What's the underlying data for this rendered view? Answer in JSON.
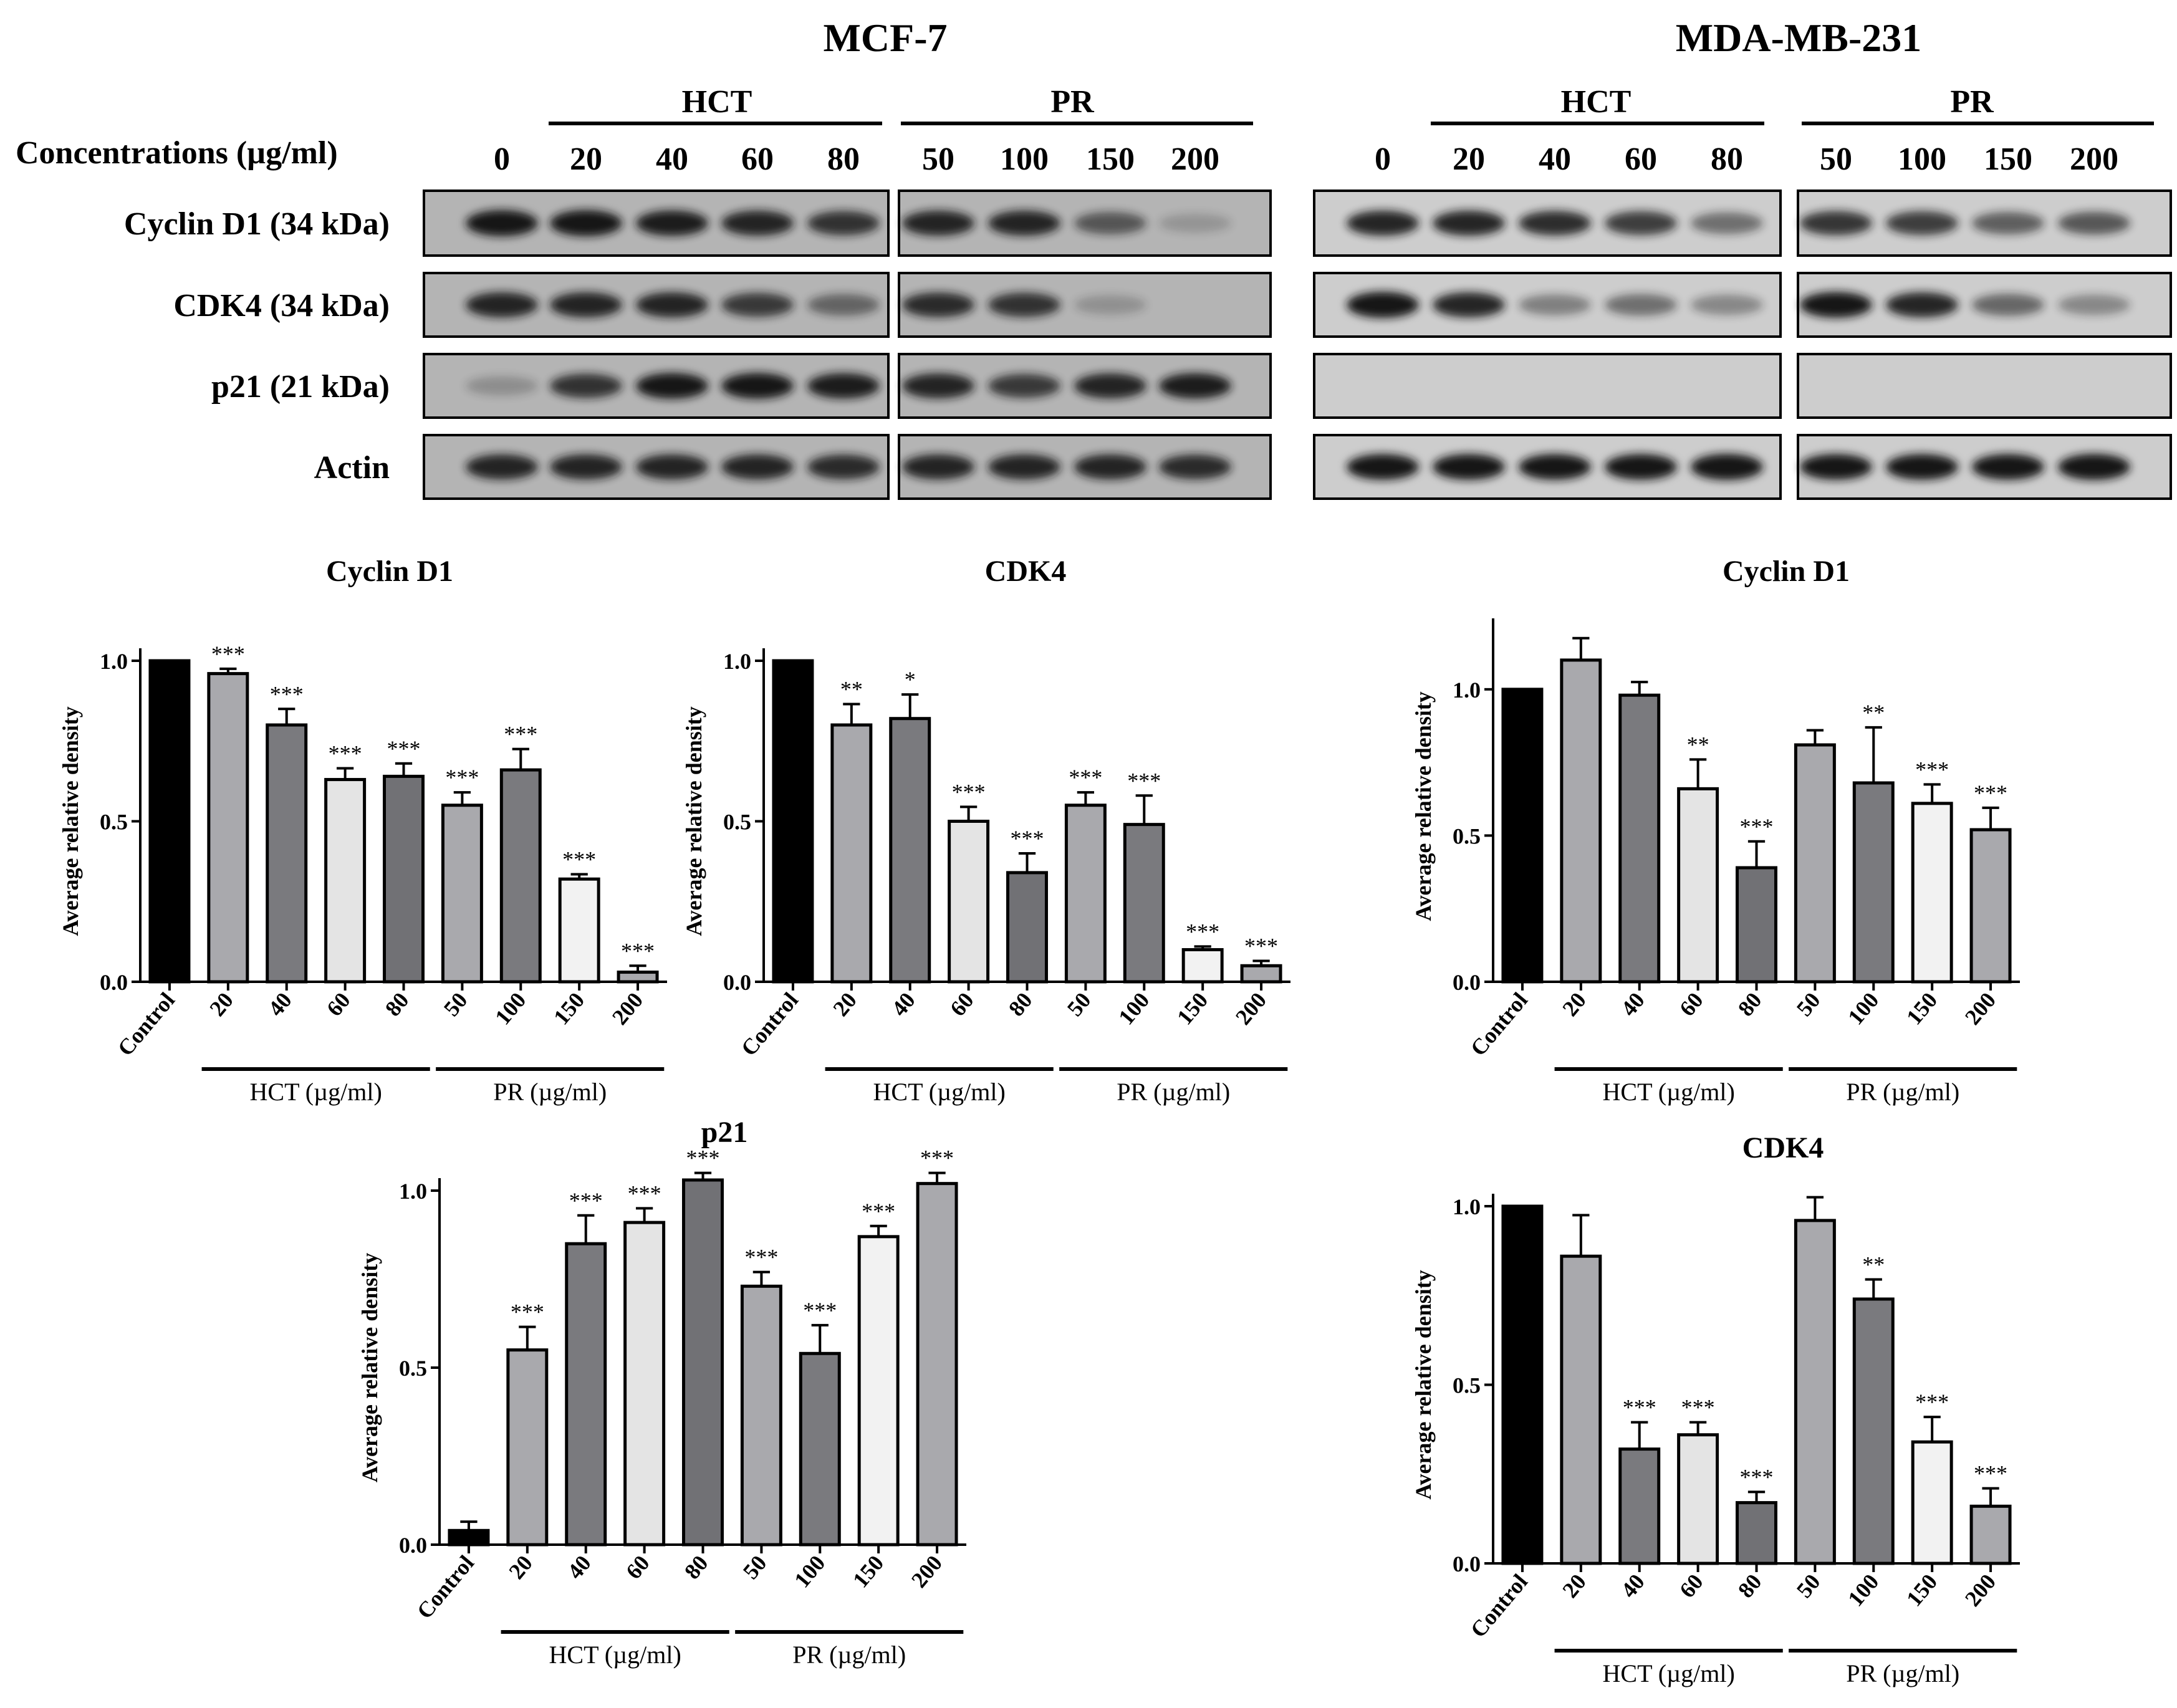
{
  "blot": {
    "cell_lines": [
      "MCF-7",
      "MDA-MB-231"
    ],
    "concentration_label": "Concentrations (µg/ml)",
    "groups": [
      "HCT",
      "PR"
    ],
    "hct_lanes": [
      "0",
      "20",
      "40",
      "60",
      "80"
    ],
    "pr_lanes": [
      "50",
      "100",
      "150",
      "200"
    ],
    "rows": [
      "Cyclin D1 (34 kDa)",
      "CDK4 (34 kDa)",
      "p21 (21 kDa)",
      "Actin"
    ],
    "colors": {
      "panel_bg": "#b4b4b4",
      "mda_bg": "#cdcdcd",
      "band": "#141414",
      "border": "#000000"
    },
    "intensities": {
      "MCF-7": {
        "Cyclin D1 (34 kDa)": [
          1,
          1,
          0.9,
          0.85,
          0.75,
          0.85,
          0.85,
          0.5,
          0.05
        ],
        "CDK4 (34 kDa)": [
          0.85,
          0.85,
          0.85,
          0.7,
          0.4,
          0.8,
          0.75,
          0.08,
          0
        ],
        "p21 (21 kDa)": [
          0.1,
          0.75,
          0.95,
          0.95,
          0.9,
          0.85,
          0.7,
          0.85,
          0.9
        ],
        "Actin": [
          0.85,
          0.85,
          0.85,
          0.85,
          0.8,
          0.85,
          0.85,
          0.85,
          0.8
        ]
      },
      "MDA-MB-231": {
        "Cyclin D1 (34 kDa)": [
          0.85,
          0.85,
          0.8,
          0.7,
          0.4,
          0.75,
          0.7,
          0.5,
          0.55
        ],
        "CDK4 (34 kDa)": [
          1,
          0.85,
          0.3,
          0.4,
          0.25,
          0.95,
          0.85,
          0.45,
          0.25
        ],
        "p21 (21 kDa)": [
          0,
          0,
          0,
          0,
          0,
          0,
          0,
          0,
          0
        ],
        "Actin": [
          0.95,
          0.95,
          0.95,
          0.95,
          1,
          0.95,
          0.95,
          0.95,
          1
        ]
      }
    }
  },
  "chart_data": [
    {
      "type": "bar",
      "panel": "MCF-7",
      "title": "Cyclin D1",
      "ylabel": "Average relative density",
      "categories": [
        "Control",
        "20",
        "40",
        "60",
        "80",
        "50",
        "100",
        "150",
        "200"
      ],
      "values": [
        1.0,
        0.96,
        0.8,
        0.63,
        0.64,
        0.55,
        0.66,
        0.32,
        0.03
      ],
      "errors": [
        0,
        0.015,
        0.05,
        0.035,
        0.04,
        0.04,
        0.065,
        0.015,
        0.02
      ],
      "significance": [
        "",
        "***",
        "***",
        "***",
        "***",
        "***",
        "***",
        "***",
        "***"
      ],
      "ylim": [
        0,
        1.0
      ],
      "yticks": [
        "0.0",
        "0.5",
        "1.0"
      ],
      "group_labels": [
        "HCT (µg/ml)",
        "PR (µg/ml)"
      ],
      "bar_colors": [
        "#000000",
        "#a9a9ad",
        "#7a7a7e",
        "#e4e4e4",
        "#717175",
        "#a9a9ad",
        "#7a7a7e",
        "#f2f2f2",
        "#a9a9ad"
      ]
    },
    {
      "type": "bar",
      "panel": "MCF-7",
      "title": "CDK4",
      "ylabel": "Average relative density",
      "categories": [
        "Control",
        "20",
        "40",
        "60",
        "80",
        "50",
        "100",
        "150",
        "200"
      ],
      "values": [
        1.0,
        0.8,
        0.82,
        0.5,
        0.34,
        0.55,
        0.49,
        0.1,
        0.05
      ],
      "errors": [
        0,
        0.065,
        0.075,
        0.045,
        0.06,
        0.04,
        0.09,
        0.01,
        0.015
      ],
      "significance": [
        "",
        "**",
        "*",
        "***",
        "***",
        "***",
        "***",
        "***",
        "***"
      ],
      "ylim": [
        0,
        1.0
      ],
      "yticks": [
        "0.0",
        "0.5",
        "1.0"
      ],
      "group_labels": [
        "HCT (µg/ml)",
        "PR (µg/ml)"
      ],
      "bar_colors": [
        "#000000",
        "#a9a9ad",
        "#7a7a7e",
        "#e4e4e4",
        "#717175",
        "#a9a9ad",
        "#7a7a7e",
        "#f2f2f2",
        "#a9a9ad"
      ]
    },
    {
      "type": "bar",
      "panel": "MCF-7",
      "title": "p21",
      "ylabel": "Average relative density",
      "categories": [
        "Control",
        "20",
        "40",
        "60",
        "80",
        "50",
        "100",
        "150",
        "200"
      ],
      "values": [
        0.04,
        0.55,
        0.85,
        0.91,
        1.03,
        0.73,
        0.54,
        0.87,
        1.02
      ],
      "errors": [
        0.025,
        0.065,
        0.08,
        0.04,
        0.02,
        0.04,
        0.08,
        0.03,
        0.03
      ],
      "significance": [
        "",
        "***",
        "***",
        "***",
        "***",
        "***",
        "***",
        "***",
        "***"
      ],
      "ylim": [
        0,
        1.0
      ],
      "yticks": [
        "0.0",
        "0.5",
        "1.0"
      ],
      "group_labels": [
        "HCT (µg/ml)",
        "PR (µg/ml)"
      ],
      "bar_colors": [
        "#000000",
        "#a9a9ad",
        "#7a7a7e",
        "#e4e4e4",
        "#717175",
        "#a9a9ad",
        "#7a7a7e",
        "#f2f2f2",
        "#a9a9ad"
      ]
    },
    {
      "type": "bar",
      "panel": "MDA-MB-231",
      "title": "Cyclin D1",
      "ylabel": "Average relative density",
      "categories": [
        "Control",
        "20",
        "40",
        "60",
        "80",
        "50",
        "100",
        "150",
        "200"
      ],
      "values": [
        1.0,
        1.1,
        0.98,
        0.66,
        0.39,
        0.81,
        0.68,
        0.61,
        0.52
      ],
      "errors": [
        0,
        0.075,
        0.045,
        0.1,
        0.09,
        0.05,
        0.19,
        0.065,
        0.075
      ],
      "significance": [
        "",
        "",
        "",
        "**",
        "***",
        "",
        "**",
        "***",
        "***"
      ],
      "ylim": [
        0,
        1.2
      ],
      "yticks": [
        "0.0",
        "0.5",
        "1.0"
      ],
      "group_labels": [
        "HCT (µg/ml)",
        "PR (µg/ml)"
      ],
      "bar_colors": [
        "#000000",
        "#a9a9ad",
        "#7a7a7e",
        "#e4e4e4",
        "#717175",
        "#a9a9ad",
        "#7a7a7e",
        "#f2f2f2",
        "#a9a9ad"
      ]
    },
    {
      "type": "bar",
      "panel": "MDA-MB-231",
      "title": "CDK4",
      "ylabel": "Average relative density",
      "categories": [
        "Control",
        "20",
        "40",
        "60",
        "80",
        "50",
        "100",
        "150",
        "200"
      ],
      "values": [
        1.0,
        0.86,
        0.32,
        0.36,
        0.17,
        0.96,
        0.74,
        0.34,
        0.16
      ],
      "errors": [
        0,
        0.115,
        0.075,
        0.035,
        0.03,
        0.065,
        0.055,
        0.07,
        0.05
      ],
      "significance": [
        "",
        "",
        "***",
        "***",
        "***",
        "",
        "**",
        "***",
        "***"
      ],
      "ylim": [
        0,
        1.0
      ],
      "yticks": [
        "0.0",
        "0.5",
        "1.0"
      ],
      "group_labels": [
        "HCT (µg/ml)",
        "PR (µg/ml)"
      ],
      "bar_colors": [
        "#000000",
        "#a9a9ad",
        "#7a7a7e",
        "#e4e4e4",
        "#717175",
        "#a9a9ad",
        "#7a7a7e",
        "#f2f2f2",
        "#a9a9ad"
      ]
    }
  ]
}
